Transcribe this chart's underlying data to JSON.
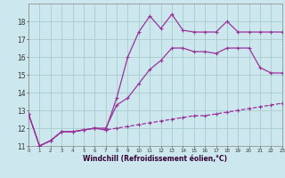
{
  "xlabel": "Windchill (Refroidissement éolien,°C)",
  "bg_color": "#cce8ee",
  "grid_color": "#aacccc",
  "line_color": "#993399",
  "x_min": 0,
  "x_max": 23,
  "y_min": 11,
  "y_max": 19,
  "yticks": [
    11,
    12,
    13,
    14,
    15,
    16,
    17,
    18
  ],
  "series1_x": [
    0,
    1,
    2,
    3,
    4,
    5,
    6,
    7,
    8,
    9,
    10,
    11,
    12,
    13,
    14,
    15,
    16,
    17,
    18,
    19,
    20,
    21,
    22,
    23
  ],
  "series1_y": [
    12.8,
    11.0,
    11.3,
    11.8,
    11.8,
    11.9,
    12.0,
    11.9,
    13.7,
    16.0,
    17.4,
    18.3,
    17.6,
    18.4,
    17.5,
    17.4,
    17.4,
    17.4,
    18.0,
    17.4,
    17.4,
    17.4,
    17.4,
    17.4
  ],
  "series2_x": [
    0,
    1,
    2,
    3,
    4,
    5,
    6,
    7,
    8,
    9,
    10,
    11,
    12,
    13,
    14,
    15,
    16,
    17,
    18,
    19,
    20,
    21,
    22,
    23
  ],
  "series2_y": [
    12.8,
    11.0,
    11.3,
    11.8,
    11.8,
    11.9,
    12.0,
    12.0,
    13.3,
    13.7,
    14.5,
    15.3,
    15.8,
    16.5,
    16.5,
    16.3,
    16.3,
    16.2,
    16.5,
    16.5,
    16.5,
    15.4,
    15.1,
    15.1
  ],
  "series3_x": [
    0,
    1,
    2,
    3,
    4,
    5,
    6,
    7,
    8,
    9,
    10,
    11,
    12,
    13,
    14,
    15,
    16,
    17,
    18,
    19,
    20,
    21,
    22,
    23
  ],
  "series3_y": [
    12.8,
    11.0,
    11.3,
    11.8,
    11.8,
    11.9,
    12.0,
    11.9,
    12.0,
    12.1,
    12.2,
    12.3,
    12.4,
    12.5,
    12.6,
    12.7,
    12.7,
    12.8,
    12.9,
    13.0,
    13.1,
    13.2,
    13.3,
    13.4
  ]
}
